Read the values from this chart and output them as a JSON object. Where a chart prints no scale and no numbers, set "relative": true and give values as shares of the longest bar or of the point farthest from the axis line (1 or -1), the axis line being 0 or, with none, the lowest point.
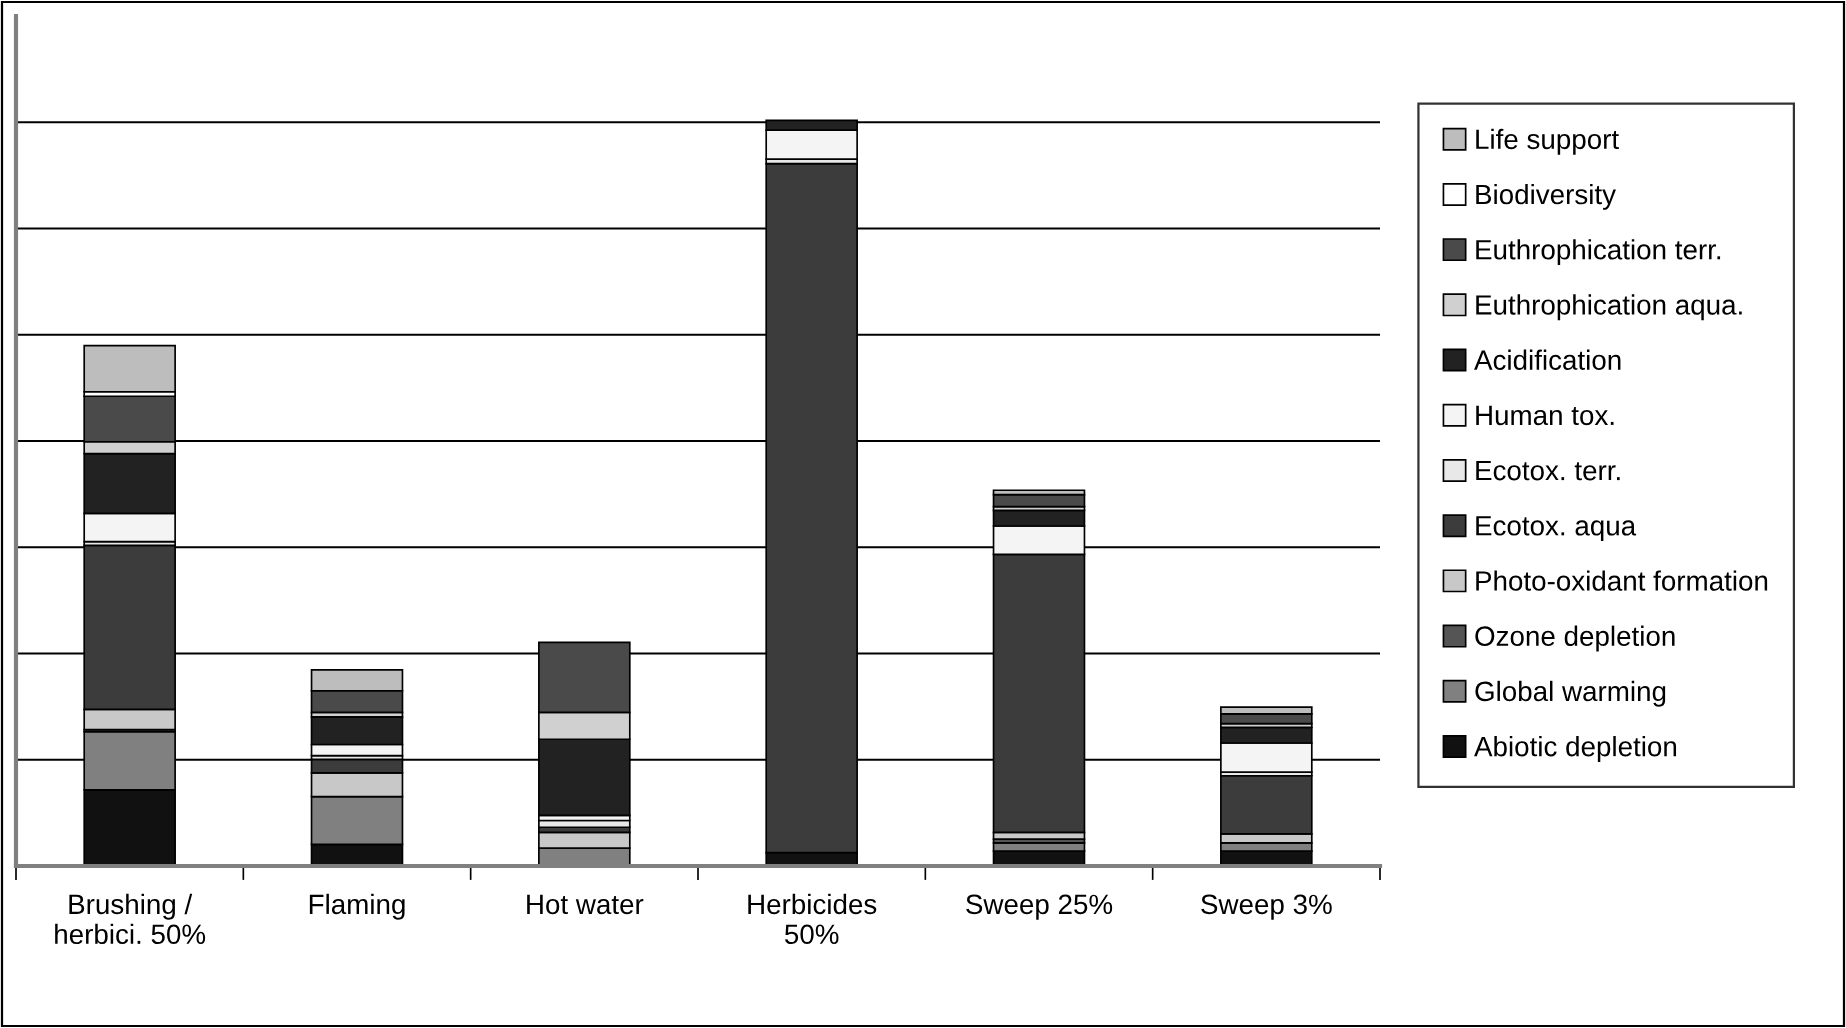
{
  "chart_data": {
    "type": "bar",
    "stacked": true,
    "relative": true,
    "grid": "y",
    "legend": "right",
    "categories": [
      "Brushing /\nherbici. 50%",
      "Flaming",
      "Hot water",
      "Herbicides\n50%",
      "Sweep 25%",
      "Sweep 3%"
    ],
    "series": [
      {
        "name": "Abiotic depletion",
        "color": "#111111",
        "values": [
          0.102,
          0.029,
          0,
          0.018,
          0.02,
          0.02
        ]
      },
      {
        "name": "Global warming",
        "color": "#808080",
        "values": [
          0.078,
          0.064,
          0.024,
          0,
          0.011,
          0.011
        ]
      },
      {
        "name": "Ozone depletion",
        "color": "#555555",
        "values": [
          0.003,
          0,
          0,
          0,
          0.005,
          0
        ]
      },
      {
        "name": "Photo-oxidant formation",
        "color": "#c8c8c8",
        "values": [
          0.027,
          0.032,
          0.021,
          0,
          0.009,
          0.012
        ]
      },
      {
        "name": "Ecotox. aqua",
        "color": "#3c3c3c",
        "values": [
          0.22,
          0.018,
          0.007,
          0.924,
          0.373,
          0.078
        ]
      },
      {
        "name": "Ecotox. terr.",
        "color": "#e8e8e8",
        "values": [
          0.005,
          0.005,
          0.009,
          0.006,
          null,
          0.005
        ]
      },
      {
        "name": "Human tox.",
        "color": "#f4f4f4",
        "values": [
          0.038,
          0.015,
          0.007,
          0.039,
          0.038,
          0.039
        ]
      },
      {
        "name": "Acidification",
        "color": "#222222",
        "values": [
          0.08,
          0.037,
          0.102,
          0.013,
          0.021,
          0.021
        ]
      },
      {
        "name": "Euthrophication aqua.",
        "color": "#d0d0d0",
        "values": [
          0.016,
          0.006,
          0.036,
          0,
          0.005,
          0.005
        ]
      },
      {
        "name": "Euthrophication terr.",
        "color": "#4a4a4a",
        "values": [
          0.061,
          0.029,
          0.094,
          0,
          0.016,
          0.013
        ]
      },
      {
        "name": "Biodiversity",
        "color": "#ffffff",
        "values": [
          0.006,
          null,
          0,
          0,
          0,
          0
        ]
      },
      {
        "name": "Life support",
        "color": "#bdbdbd",
        "values": [
          0.062,
          0.028,
          0,
          0,
          0.006,
          0.009
        ]
      }
    ]
  }
}
